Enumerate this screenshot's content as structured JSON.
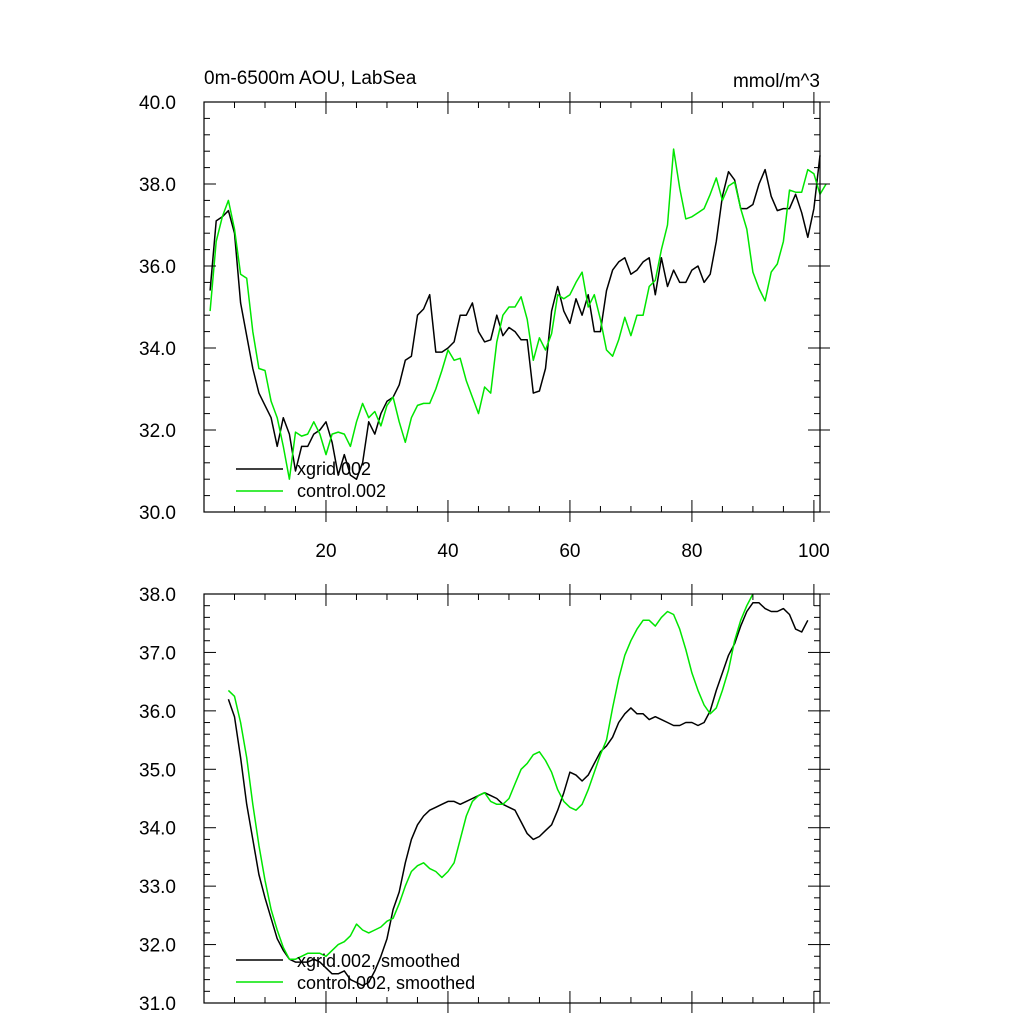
{
  "chart_data": [
    {
      "type": "line",
      "title": "0m-6500m AOU, LabSea",
      "units": "mmol/m^3",
      "xlabel": "",
      "ylabel": "",
      "xlim": [
        0,
        101
      ],
      "ylim": [
        30.0,
        40.0
      ],
      "x_ticks": [
        20,
        40,
        60,
        80,
        100
      ],
      "x_tick_labels": [
        "20",
        "40",
        "60",
        "80",
        "100"
      ],
      "y_ticks": [
        30.0,
        32.0,
        34.0,
        36.0,
        38.0,
        40.0
      ],
      "y_tick_labels": [
        "30.0",
        "32.0",
        "34.0",
        "36.0",
        "38.0",
        "40.0"
      ],
      "legend_position": "bottom-left",
      "x_start": 1,
      "series": [
        {
          "name": "xgrid.002",
          "color": "#000000",
          "values": [
            35.4,
            37.1,
            37.2,
            37.35,
            36.8,
            35.1,
            34.3,
            33.5,
            32.9,
            32.6,
            32.3,
            31.6,
            32.3,
            31.9,
            31.0,
            31.6,
            31.6,
            31.9,
            32.0,
            32.2,
            31.7,
            30.9,
            31.4,
            30.9,
            30.8,
            31.2,
            32.2,
            31.9,
            32.4,
            32.7,
            32.8,
            33.1,
            33.7,
            33.8,
            34.8,
            34.95,
            35.3,
            33.9,
            33.9,
            34.0,
            34.15,
            34.8,
            34.8,
            35.1,
            34.4,
            34.15,
            34.2,
            34.8,
            34.3,
            34.5,
            34.4,
            34.2,
            34.2,
            32.9,
            32.95,
            33.5,
            34.9,
            35.5,
            34.9,
            34.6,
            35.2,
            34.8,
            35.3,
            34.4,
            34.4,
            35.4,
            35.9,
            36.1,
            36.2,
            35.8,
            35.9,
            36.1,
            36.2,
            35.3,
            36.2,
            35.5,
            35.9,
            35.6,
            35.6,
            35.9,
            36.0,
            35.6,
            35.8,
            36.6,
            37.7,
            38.3,
            38.1,
            37.4,
            37.4,
            37.5,
            38.0,
            38.35,
            37.7,
            37.35,
            37.4,
            37.4,
            37.75,
            37.3,
            36.7,
            37.4,
            38.7
          ]
        },
        {
          "name": "control.002",
          "color": "#00e600",
          "values": [
            34.9,
            36.6,
            37.2,
            37.6,
            36.9,
            35.8,
            35.7,
            34.4,
            33.5,
            33.45,
            32.7,
            32.3,
            31.6,
            30.8,
            31.95,
            31.85,
            31.9,
            32.2,
            31.9,
            31.4,
            31.9,
            31.95,
            31.9,
            31.6,
            32.2,
            32.65,
            32.3,
            32.45,
            32.1,
            32.6,
            32.8,
            32.2,
            31.7,
            32.3,
            32.6,
            32.65,
            32.65,
            33.0,
            33.45,
            33.95,
            33.7,
            33.75,
            33.2,
            32.8,
            32.4,
            33.05,
            32.9,
            34.15,
            34.8,
            35.0,
            35.0,
            35.25,
            34.7,
            33.7,
            34.25,
            33.95,
            34.35,
            35.3,
            35.2,
            35.3,
            35.6,
            35.85,
            35.0,
            35.3,
            34.7,
            33.95,
            33.8,
            34.2,
            34.75,
            34.3,
            34.8,
            34.8,
            35.5,
            35.65,
            36.4,
            37.0,
            38.85,
            37.9,
            37.15,
            37.2,
            37.3,
            37.4,
            37.75,
            38.15,
            37.6,
            37.95,
            38.05,
            37.4,
            36.9,
            35.85,
            35.45,
            35.15,
            35.85,
            36.05,
            36.6,
            37.85,
            37.8,
            37.8,
            38.35,
            38.25,
            37.75,
            38.0
          ]
        }
      ]
    },
    {
      "type": "line",
      "title": "",
      "xlabel": "",
      "ylabel": "",
      "xlim": [
        0,
        101
      ],
      "ylim": [
        31.0,
        38.0
      ],
      "x_ticks": [
        20,
        40,
        60,
        80,
        100
      ],
      "x_tick_labels": [
        "",
        "",
        "",
        "",
        ""
      ],
      "y_ticks": [
        31.0,
        32.0,
        33.0,
        34.0,
        35.0,
        36.0,
        37.0,
        38.0
      ],
      "y_tick_labels": [
        "31.0",
        "32.0",
        "33.0",
        "34.0",
        "35.0",
        "36.0",
        "37.0",
        "38.0"
      ],
      "legend_position": "bottom-left",
      "x_start": 4,
      "series": [
        {
          "name": "xgrid.002, smoothed",
          "color": "#000000",
          "values": [
            36.2,
            35.9,
            35.2,
            34.4,
            33.8,
            33.2,
            32.8,
            32.45,
            32.1,
            31.9,
            31.75,
            31.7,
            31.7,
            31.7,
            31.75,
            31.7,
            31.6,
            31.5,
            31.5,
            31.55,
            31.4,
            31.35,
            31.3,
            31.35,
            31.55,
            31.8,
            32.1,
            32.6,
            32.9,
            33.4,
            33.8,
            34.05,
            34.2,
            34.3,
            34.35,
            34.4,
            34.45,
            34.45,
            34.4,
            34.45,
            34.5,
            34.55,
            34.6,
            34.55,
            34.5,
            34.4,
            34.35,
            34.3,
            34.1,
            33.9,
            33.8,
            33.85,
            33.95,
            34.05,
            34.3,
            34.6,
            34.95,
            34.9,
            34.8,
            34.9,
            35.1,
            35.3,
            35.4,
            35.55,
            35.8,
            35.95,
            36.05,
            35.95,
            35.95,
            35.85,
            35.9,
            35.85,
            35.8,
            35.75,
            35.75,
            35.8,
            35.8,
            35.75,
            35.8,
            36.0,
            36.35,
            36.65,
            36.95,
            37.15,
            37.45,
            37.7,
            37.85,
            37.85,
            37.75,
            37.7,
            37.7,
            37.75,
            37.65,
            37.4,
            37.35,
            37.55
          ]
        },
        {
          "name": "control.002, smoothed",
          "color": "#00e600",
          "values": [
            36.35,
            36.25,
            35.8,
            35.2,
            34.4,
            33.7,
            33.1,
            32.6,
            32.25,
            31.95,
            31.75,
            31.75,
            31.8,
            31.85,
            31.85,
            31.85,
            31.8,
            31.9,
            32.0,
            32.05,
            32.15,
            32.35,
            32.25,
            32.2,
            32.25,
            32.3,
            32.4,
            32.45,
            32.7,
            33.0,
            33.25,
            33.35,
            33.4,
            33.3,
            33.25,
            33.15,
            33.25,
            33.4,
            33.8,
            34.2,
            34.45,
            34.55,
            34.6,
            34.45,
            34.4,
            34.4,
            34.5,
            34.75,
            35.0,
            35.1,
            35.25,
            35.3,
            35.15,
            34.95,
            34.65,
            34.45,
            34.35,
            34.3,
            34.4,
            34.65,
            34.95,
            35.25,
            35.5,
            36.05,
            36.55,
            36.95,
            37.2,
            37.4,
            37.55,
            37.55,
            37.45,
            37.6,
            37.7,
            37.65,
            37.4,
            37.05,
            36.65,
            36.35,
            36.1,
            35.95,
            36.05,
            36.35,
            36.7,
            37.2,
            37.55,
            37.8,
            38.0
          ]
        }
      ]
    }
  ]
}
